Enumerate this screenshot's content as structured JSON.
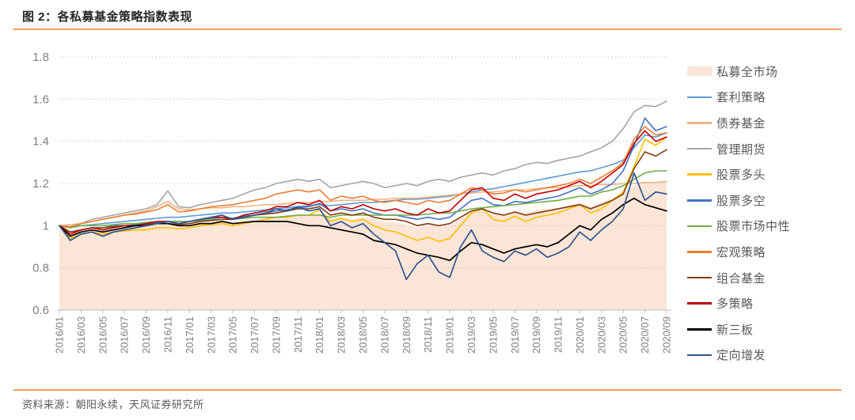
{
  "figure": {
    "title": "图 2：各私募基金策略指数表现",
    "source": "资料来源：朝阳永续，天风证券研究所"
  },
  "colors": {
    "accent_rule": "#F2A05E",
    "axis_text": "#7F7F7F",
    "axis_line": "#BFBFBF",
    "gridline": "#C9C9C9",
    "legend_text": "#595959"
  },
  "chart_data": {
    "type": "line",
    "title": "各私募基金策略指数表现",
    "xlabel": "",
    "ylabel": "",
    "ylim": [
      0.6,
      1.8
    ],
    "y_tick_labels": [
      "0.6",
      "0.8",
      "1",
      "1.2",
      "1.4",
      "1.6",
      "1.8"
    ],
    "y_tick_values": [
      0.6,
      0.8,
      1.0,
      1.2,
      1.4,
      1.6,
      1.8
    ],
    "grid": "horizontal dotted",
    "legend_position": "right",
    "x_label_every_n_months": 2,
    "x_tick_labels": [
      "2016/01",
      "2016/03",
      "2016/05",
      "2016/07",
      "2016/09",
      "2016/11",
      "2017/01",
      "2017/03",
      "2017/05",
      "2017/07",
      "2017/09",
      "2017/11",
      "2018/01",
      "2018/03",
      "2018/05",
      "2018/07",
      "2018/09",
      "2018/11",
      "2019/01",
      "2019/03",
      "2019/05",
      "2019/07",
      "2019/09",
      "2019/11",
      "2020/01",
      "2020/03",
      "2020/05",
      "2020/07",
      "2020/09"
    ],
    "series": [
      {
        "name": "私募全市场",
        "style": "area",
        "color": "#FBE5D6",
        "values": [
          1.0,
          0.965,
          0.975,
          0.985,
          0.98,
          0.99,
          0.995,
          1.0,
          1.0,
          1.005,
          1.01,
          1.005,
          1.01,
          1.015,
          1.02,
          1.025,
          1.02,
          1.025,
          1.03,
          1.035,
          1.04,
          1.045,
          1.05,
          1.05,
          1.06,
          1.03,
          1.04,
          1.03,
          1.04,
          1.03,
          1.02,
          1.015,
          1.005,
          0.99,
          1.0,
          0.995,
          1.0,
          1.03,
          1.07,
          1.08,
          1.06,
          1.055,
          1.07,
          1.06,
          1.075,
          1.08,
          1.085,
          1.095,
          1.11,
          1.09,
          1.11,
          1.13,
          1.15,
          1.19,
          1.21,
          1.2,
          1.215
        ]
      },
      {
        "name": "套利策略",
        "style": "line",
        "color": "#5B9BD5",
        "values": [
          1.0,
          0.995,
          1.0,
          1.005,
          1.01,
          1.015,
          1.02,
          1.025,
          1.03,
          1.035,
          1.04,
          1.04,
          1.045,
          1.05,
          1.055,
          1.06,
          1.06,
          1.065,
          1.07,
          1.075,
          1.08,
          1.085,
          1.09,
          1.095,
          1.1,
          1.095,
          1.1,
          1.105,
          1.11,
          1.11,
          1.115,
          1.12,
          1.125,
          1.125,
          1.13,
          1.135,
          1.14,
          1.15,
          1.16,
          1.17,
          1.175,
          1.185,
          1.195,
          1.205,
          1.215,
          1.225,
          1.235,
          1.245,
          1.255,
          1.26,
          1.275,
          1.29,
          1.31,
          1.37,
          1.43,
          1.42,
          1.44
        ]
      },
      {
        "name": "债券基金",
        "style": "line",
        "color": "#F4B183",
        "values": [
          1.0,
          1.005,
          1.01,
          1.02,
          1.03,
          1.04,
          1.05,
          1.06,
          1.07,
          1.09,
          1.115,
          1.08,
          1.075,
          1.08,
          1.085,
          1.085,
          1.09,
          1.09,
          1.095,
          1.1,
          1.1,
          1.105,
          1.11,
          1.11,
          1.115,
          1.115,
          1.12,
          1.12,
          1.12,
          1.125,
          1.125,
          1.13,
          1.13,
          1.13,
          1.135,
          1.14,
          1.145,
          1.15,
          1.155,
          1.16,
          1.16,
          1.165,
          1.17,
          1.17,
          1.175,
          1.18,
          1.18,
          1.185,
          1.19,
          1.19,
          1.195,
          1.195,
          1.2,
          1.2,
          1.205,
          1.205,
          1.21
        ]
      },
      {
        "name": "管理期货",
        "style": "line",
        "color": "#A5A5A5",
        "values": [
          1.0,
          0.99,
          1.01,
          1.03,
          1.04,
          1.05,
          1.06,
          1.07,
          1.08,
          1.1,
          1.165,
          1.09,
          1.085,
          1.1,
          1.11,
          1.12,
          1.13,
          1.15,
          1.17,
          1.18,
          1.2,
          1.21,
          1.22,
          1.21,
          1.22,
          1.18,
          1.19,
          1.2,
          1.21,
          1.2,
          1.18,
          1.19,
          1.2,
          1.19,
          1.21,
          1.22,
          1.21,
          1.23,
          1.24,
          1.25,
          1.24,
          1.26,
          1.27,
          1.29,
          1.3,
          1.295,
          1.31,
          1.32,
          1.33,
          1.35,
          1.37,
          1.4,
          1.46,
          1.54,
          1.57,
          1.565,
          1.59
        ]
      },
      {
        "name": "股票多头",
        "style": "line",
        "color": "#FFC000",
        "values": [
          1.0,
          0.94,
          0.96,
          0.97,
          0.96,
          0.97,
          0.975,
          0.98,
          0.98,
          0.99,
          0.99,
          0.985,
          0.99,
          1.0,
          1.005,
          1.01,
          1.0,
          1.01,
          1.02,
          1.03,
          1.04,
          1.04,
          1.05,
          1.05,
          1.075,
          1.02,
          1.035,
          1.02,
          1.03,
          1.0,
          0.98,
          0.97,
          0.95,
          0.93,
          0.945,
          0.925,
          0.94,
          1.0,
          1.06,
          1.08,
          1.03,
          1.02,
          1.045,
          1.02,
          1.04,
          1.05,
          1.06,
          1.08,
          1.1,
          1.06,
          1.08,
          1.12,
          1.16,
          1.28,
          1.41,
          1.38,
          1.42
        ]
      },
      {
        "name": "股票多空",
        "style": "line",
        "color": "#4472C4",
        "values": [
          1.0,
          0.97,
          0.98,
          0.99,
          0.99,
          1.0,
          1.0,
          1.005,
          1.01,
          1.015,
          1.02,
          1.02,
          1.02,
          1.03,
          1.035,
          1.04,
          1.035,
          1.045,
          1.05,
          1.06,
          1.07,
          1.075,
          1.085,
          1.09,
          1.105,
          1.07,
          1.08,
          1.07,
          1.08,
          1.06,
          1.05,
          1.05,
          1.04,
          1.03,
          1.04,
          1.03,
          1.04,
          1.08,
          1.12,
          1.13,
          1.1,
          1.095,
          1.115,
          1.11,
          1.12,
          1.13,
          1.14,
          1.16,
          1.18,
          1.15,
          1.17,
          1.2,
          1.26,
          1.38,
          1.51,
          1.45,
          1.47
        ]
      },
      {
        "name": "股票市场中性",
        "style": "line",
        "color": "#70AD47",
        "values": [
          1.0,
          0.99,
          1.0,
          1.0,
          1.0,
          1.005,
          1.01,
          1.01,
          1.015,
          1.02,
          1.02,
          1.02,
          1.02,
          1.025,
          1.03,
          1.03,
          1.03,
          1.035,
          1.04,
          1.04,
          1.04,
          1.045,
          1.05,
          1.05,
          1.05,
          1.04,
          1.05,
          1.05,
          1.05,
          1.05,
          1.05,
          1.05,
          1.05,
          1.05,
          1.055,
          1.06,
          1.06,
          1.07,
          1.08,
          1.085,
          1.09,
          1.095,
          1.1,
          1.105,
          1.11,
          1.115,
          1.12,
          1.13,
          1.14,
          1.14,
          1.16,
          1.17,
          1.19,
          1.22,
          1.25,
          1.26,
          1.26
        ]
      },
      {
        "name": "宏观策略",
        "style": "line",
        "color": "#ED7D31",
        "values": [
          1.0,
          0.995,
          1.01,
          1.02,
          1.03,
          1.04,
          1.05,
          1.055,
          1.065,
          1.075,
          1.1,
          1.065,
          1.07,
          1.08,
          1.09,
          1.095,
          1.1,
          1.11,
          1.12,
          1.13,
          1.15,
          1.16,
          1.17,
          1.16,
          1.17,
          1.12,
          1.14,
          1.13,
          1.14,
          1.12,
          1.11,
          1.12,
          1.11,
          1.1,
          1.12,
          1.11,
          1.12,
          1.15,
          1.18,
          1.17,
          1.15,
          1.155,
          1.17,
          1.16,
          1.17,
          1.18,
          1.19,
          1.2,
          1.22,
          1.2,
          1.23,
          1.26,
          1.3,
          1.41,
          1.47,
          1.43,
          1.44
        ]
      },
      {
        "name": "组合基金",
        "style": "line",
        "color": "#843C0C",
        "values": [
          1.0,
          0.97,
          0.98,
          0.99,
          0.99,
          0.995,
          1.0,
          1.0,
          1.005,
          1.01,
          1.01,
          1.005,
          1.01,
          1.02,
          1.025,
          1.03,
          1.03,
          1.04,
          1.05,
          1.055,
          1.06,
          1.07,
          1.08,
          1.08,
          1.09,
          1.05,
          1.06,
          1.05,
          1.06,
          1.04,
          1.03,
          1.03,
          1.02,
          1.0,
          1.01,
          1.0,
          1.01,
          1.04,
          1.07,
          1.08,
          1.06,
          1.05,
          1.065,
          1.05,
          1.06,
          1.07,
          1.08,
          1.09,
          1.1,
          1.08,
          1.1,
          1.12,
          1.15,
          1.27,
          1.35,
          1.33,
          1.36
        ]
      },
      {
        "name": "多策略",
        "style": "line",
        "color": "#C00000",
        "values": [
          1.0,
          0.96,
          0.98,
          0.99,
          0.98,
          0.99,
          1.0,
          1.0,
          1.01,
          1.02,
          1.02,
          1.01,
          1.02,
          1.03,
          1.04,
          1.04,
          1.03,
          1.05,
          1.06,
          1.07,
          1.09,
          1.09,
          1.11,
          1.1,
          1.12,
          1.07,
          1.09,
          1.08,
          1.1,
          1.08,
          1.07,
          1.08,
          1.06,
          1.05,
          1.08,
          1.06,
          1.07,
          1.12,
          1.17,
          1.18,
          1.13,
          1.12,
          1.15,
          1.13,
          1.15,
          1.16,
          1.17,
          1.19,
          1.21,
          1.18,
          1.21,
          1.25,
          1.29,
          1.39,
          1.45,
          1.4,
          1.42
        ]
      },
      {
        "name": "新三板",
        "style": "line",
        "color": "#000000",
        "values": [
          1.0,
          0.95,
          0.97,
          0.98,
          0.97,
          0.98,
          0.99,
          1.0,
          1.0,
          1.01,
          1.01,
          1.0,
          1.0,
          1.01,
          1.01,
          1.02,
          1.01,
          1.015,
          1.02,
          1.02,
          1.02,
          1.02,
          1.01,
          1.0,
          1.0,
          0.99,
          0.98,
          0.97,
          0.96,
          0.93,
          0.92,
          0.91,
          0.89,
          0.87,
          0.86,
          0.85,
          0.835,
          0.88,
          0.92,
          0.91,
          0.89,
          0.87,
          0.89,
          0.9,
          0.91,
          0.9,
          0.92,
          0.96,
          1.0,
          0.98,
          1.03,
          1.06,
          1.1,
          1.13,
          1.1,
          1.085,
          1.07
        ]
      },
      {
        "name": "定向增发",
        "style": "line",
        "color": "#2E5490",
        "values": [
          1.0,
          0.93,
          0.96,
          0.97,
          0.95,
          0.97,
          0.98,
          0.99,
          1.0,
          1.01,
          1.02,
          1.01,
          1.02,
          1.03,
          1.04,
          1.05,
          1.03,
          1.04,
          1.05,
          1.06,
          1.08,
          1.07,
          1.09,
          1.07,
          1.08,
          1.0,
          1.02,
          0.99,
          1.01,
          0.96,
          0.92,
          0.88,
          0.745,
          0.82,
          0.86,
          0.78,
          0.755,
          0.9,
          0.98,
          0.88,
          0.85,
          0.83,
          0.88,
          0.86,
          0.89,
          0.85,
          0.87,
          0.9,
          0.97,
          0.93,
          0.98,
          1.02,
          1.08,
          1.25,
          1.12,
          1.16,
          1.15
        ]
      }
    ]
  }
}
